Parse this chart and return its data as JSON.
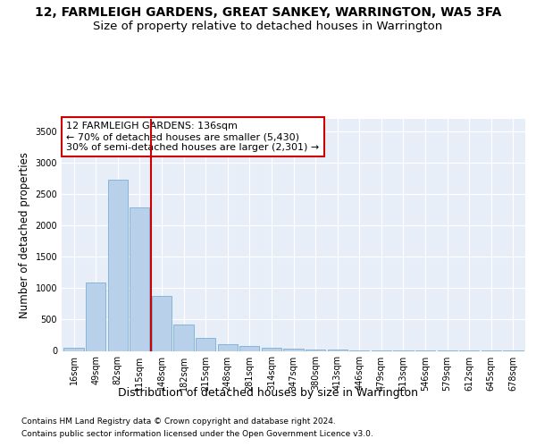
{
  "title_line1": "12, FARMLEIGH GARDENS, GREAT SANKEY, WARRINGTON, WA5 3FA",
  "title_line2": "Size of property relative to detached houses in Warrington",
  "xlabel": "Distribution of detached houses by size in Warrington",
  "ylabel": "Number of detached properties",
  "categories": [
    "16sqm",
    "49sqm",
    "82sqm",
    "115sqm",
    "148sqm",
    "182sqm",
    "215sqm",
    "248sqm",
    "281sqm",
    "314sqm",
    "347sqm",
    "380sqm",
    "413sqm",
    "446sqm",
    "479sqm",
    "513sqm",
    "546sqm",
    "579sqm",
    "612sqm",
    "645sqm",
    "678sqm"
  ],
  "values": [
    50,
    1090,
    2720,
    2290,
    880,
    415,
    205,
    110,
    80,
    55,
    35,
    20,
    18,
    12,
    8,
    5,
    4,
    3,
    2,
    1,
    1
  ],
  "bar_color": "#b8d0ea",
  "bar_edge_color": "#7aafd4",
  "vline_x": 3.5,
  "vline_color": "#cc0000",
  "annotation_text": "12 FARMLEIGH GARDENS: 136sqm\n← 70% of detached houses are smaller (5,430)\n30% of semi-detached houses are larger (2,301) →",
  "annotation_box_color": "#ffffff",
  "annotation_border_color": "#cc0000",
  "ylim": [
    0,
    3700
  ],
  "yticks": [
    0,
    500,
    1000,
    1500,
    2000,
    2500,
    3000,
    3500
  ],
  "background_color": "#ffffff",
  "plot_bg_color": "#e8eef8",
  "grid_color": "#ffffff",
  "footer_line1": "Contains HM Land Registry data © Crown copyright and database right 2024.",
  "footer_line2": "Contains public sector information licensed under the Open Government Licence v3.0.",
  "title_fontsize": 10,
  "subtitle_fontsize": 9.5,
  "ylabel_fontsize": 8.5,
  "xlabel_fontsize": 9,
  "tick_fontsize": 7,
  "annotation_fontsize": 8,
  "footer_fontsize": 6.5
}
